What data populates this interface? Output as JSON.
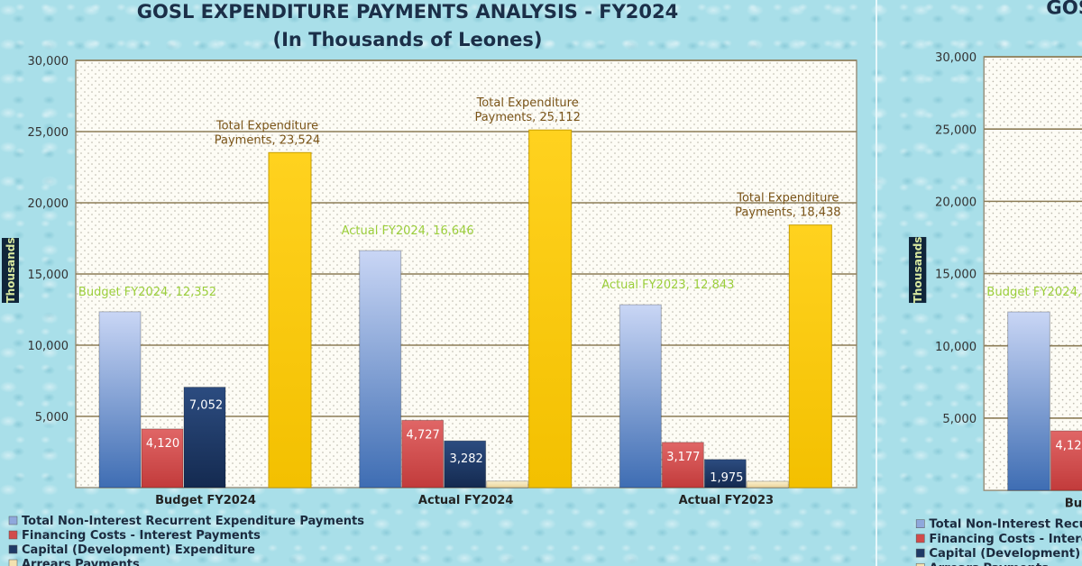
{
  "chart_data": {
    "type": "bar",
    "title": "GOSL EXPENDITURE PAYMENTS ANALYSIS - FY2024",
    "subtitle": "(In Thousands of Leones)",
    "ylabel": "Thousands",
    "ylim": [
      0,
      30000
    ],
    "yticks": [
      "5,000",
      "10,000",
      "15,000",
      "20,000",
      "25,000",
      "30,000"
    ],
    "ytick_values": [
      5000,
      10000,
      15000,
      20000,
      25000,
      30000
    ],
    "grid": true,
    "legend_position": "bottom-left",
    "categories": [
      "Budget FY2024",
      "Actual FY2024",
      "Actual FY2023"
    ],
    "series": [
      {
        "name": "Total Non-Interest Recurrent Expenditure Payments",
        "color": "#8fa8dc",
        "values": [
          12352,
          16646,
          12843
        ],
        "labels": [
          "Budget FY2024,  12,352",
          "Actual FY2024,  16,646",
          "Actual FY2023,  12,843"
        ]
      },
      {
        "name": "Financing Costs - Interest Payments",
        "color": "#d24b4b",
        "values": [
          4120,
          4727,
          3177
        ],
        "labels": [
          "4,120",
          "4,727",
          "3,177"
        ]
      },
      {
        "name": "Capital (Development) Expenditure",
        "color": "#1f3a66",
        "values": [
          7052,
          3282,
          1975
        ],
        "labels": [
          "7,052",
          "3,282",
          "1,975"
        ]
      },
      {
        "name": "Arrears Payments",
        "color": "#f3e2b0",
        "values": [
          0,
          457,
          443
        ],
        "labels": [
          "",
          "",
          ""
        ]
      },
      {
        "name": "Total Expenditure Payments",
        "color": "#ffcc00",
        "values": [
          23524,
          25112,
          18438
        ],
        "labels": [
          [
            "Total Expenditure",
            "Payments,  23,524"
          ],
          [
            "Total Expenditure",
            "Payments,  25,112"
          ],
          [
            "Total Expenditure",
            "Payments,  18,438"
          ]
        ]
      }
    ],
    "colors": {
      "title": "#1b2f48",
      "grid": "#8c7c56",
      "plot_bg": "#fdfcf5",
      "total_label": "#7a5418",
      "recurrent_label": "#9ccf3c",
      "axis_title_box": "#10253a"
    }
  },
  "duplicate_title_fragment": "GOSL"
}
